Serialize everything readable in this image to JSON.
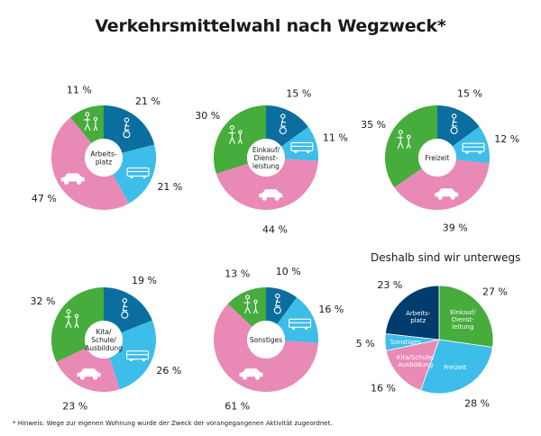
{
  "title": "Verkehrsmittelwahl nach Wegzweck*",
  "subheading": "Deshalb sind wir unterwegs",
  "footnote": "* Hinweis: Wege zur eigenen Wohnung wurde der Zweck der vorangegangenen Aktivität zugeordnet.",
  "colors": {
    "bike": "#0b6e9e",
    "public_transport": "#3dbdea",
    "car": "#e889b6",
    "walk": "#46ac3c",
    "work": "#003c6e"
  },
  "chart_data": [
    {
      "type": "donut",
      "center_label": [
        "Arbeits-",
        "platz"
      ],
      "categories": [
        "Fahrrad",
        "ÖPNV",
        "Auto",
        "Zu Fuß"
      ],
      "icons": [
        "cyclist-icon",
        "bus-icon",
        "car-icon",
        "pedestrian-icon"
      ],
      "values": [
        21,
        21,
        47,
        11
      ],
      "labels": [
        "21 %",
        "21 %",
        "47 %",
        "11 %"
      ]
    },
    {
      "type": "donut",
      "center_label": [
        "Einkauf/",
        "Dienst-",
        "leistung"
      ],
      "categories": [
        "Fahrrad",
        "ÖPNV",
        "Auto",
        "Zu Fuß"
      ],
      "icons": [
        "cyclist-icon",
        "bus-icon",
        "car-icon",
        "pedestrian-icon"
      ],
      "values": [
        15,
        11,
        44,
        30
      ],
      "labels": [
        "15 %",
        "11 %",
        "44 %",
        "30 %"
      ]
    },
    {
      "type": "donut",
      "center_label": [
        "Freizeit"
      ],
      "categories": [
        "Fahrrad",
        "ÖPNV",
        "Auto",
        "Zu Fuß"
      ],
      "icons": [
        "cyclist-icon",
        "bus-icon",
        "car-icon",
        "pedestrian-icon"
      ],
      "values": [
        15,
        12,
        39,
        35
      ],
      "labels": [
        "15 %",
        "12 %",
        "39 %",
        "35 %"
      ]
    },
    {
      "type": "donut",
      "center_label": [
        "Kita/",
        "Schule/",
        "Ausbildung"
      ],
      "categories": [
        "Fahrrad",
        "ÖPNV",
        "Auto",
        "Zu Fuß"
      ],
      "icons": [
        "cyclist-icon",
        "bus-icon",
        "car-icon",
        "pedestrian-icon"
      ],
      "values": [
        19,
        26,
        23,
        32
      ],
      "labels": [
        "19 %",
        "26 %",
        "23 %",
        "32 %"
      ]
    },
    {
      "type": "donut",
      "center_label": [
        "Sonstiges"
      ],
      "categories": [
        "Fahrrad",
        "ÖPNV",
        "Auto",
        "Zu Fuß"
      ],
      "icons": [
        "cyclist-icon",
        "bus-icon",
        "car-icon",
        "pedestrian-icon"
      ],
      "values": [
        10,
        16,
        61,
        13
      ],
      "labels": [
        "10 %",
        "16 %",
        "61 %",
        "13 %"
      ]
    },
    {
      "type": "pie",
      "title": "Deshalb sind wir unterwegs",
      "categories": [
        "Einkauf/Dienstleitung",
        "Freizeit",
        "Kita/Schule/Ausbildung",
        "Sonstiges",
        "Arbeitsplatz"
      ],
      "slice_labels": [
        [
          "Einkauf/",
          "Dienst-",
          "leitung"
        ],
        [
          "Freizeit"
        ],
        [
          "Kita/Schule/",
          "Ausbildung"
        ],
        [
          "Sonstiges"
        ],
        [
          "Arbeits-",
          "platz"
        ]
      ],
      "values": [
        27,
        28,
        16,
        5,
        23
      ],
      "labels": [
        "27 %",
        "28 %",
        "16 %",
        "5 %",
        "23 %"
      ]
    }
  ]
}
